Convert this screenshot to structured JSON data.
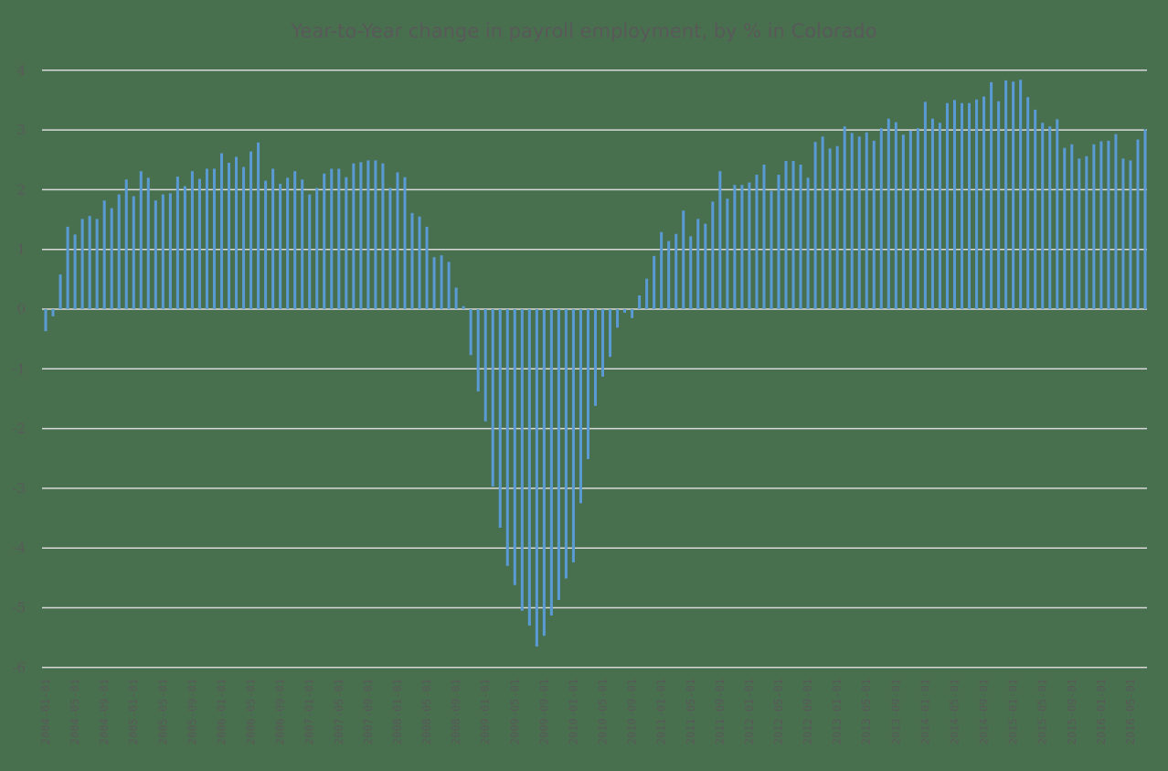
{
  "chart_data": {
    "type": "bar",
    "title": "Year-to-Year change in payroll employment, by % in Colorado",
    "xlabel": "",
    "ylabel": "",
    "ylim": [
      -6,
      4
    ],
    "yticks": [
      4,
      3,
      2,
      1,
      0,
      -1,
      -2,
      -3,
      -4,
      -5,
      -6
    ],
    "grid": true,
    "legend": null,
    "colors": {
      "background": "#48704E",
      "bar": "#5B9BD5",
      "grid": "#D9D9D9",
      "text": "#595959"
    },
    "xtick_labels": [
      "2004-01-01",
      "2004-05-01",
      "2004-09-01",
      "2005-01-01",
      "2005-05-01",
      "2005-09-01",
      "2006-01-01",
      "2006-05-01",
      "2006-09-01",
      "2007-01-01",
      "2007-05-01",
      "2007-09-01",
      "2008-01-01",
      "2008-05-01",
      "2008-09-01",
      "2009-01-01",
      "2009-05-01",
      "2009-09-01",
      "2010-01-01",
      "2010-05-01",
      "2010-09-01",
      "2011-01-01",
      "2011-05-01",
      "2011-09-01",
      "2012-01-01",
      "2012-05-01",
      "2012-09-01",
      "2013-01-01",
      "2013-05-01",
      "2013-09-01",
      "2014-01-01",
      "2014-05-01",
      "2014-09-01",
      "2015-01-01",
      "2015-05-01",
      "2015-09-01",
      "2016-01-01",
      "2016-05-01"
    ],
    "start_month": "2004-01",
    "values": [
      -0.37,
      -0.12,
      0.58,
      1.38,
      1.25,
      1.51,
      1.56,
      1.51,
      1.82,
      1.69,
      1.92,
      2.17,
      1.89,
      2.31,
      2.2,
      1.82,
      1.92,
      1.94,
      2.22,
      2.06,
      2.31,
      2.18,
      2.35,
      2.35,
      2.61,
      2.45,
      2.55,
      2.38,
      2.64,
      2.79,
      2.15,
      2.35,
      2.1,
      2.2,
      2.31,
      2.17,
      1.92,
      2.03,
      2.27,
      2.35,
      2.35,
      2.21,
      2.44,
      2.46,
      2.49,
      2.49,
      2.44,
      2.03,
      2.29,
      2.21,
      1.61,
      1.55,
      1.38,
      0.87,
      0.9,
      0.79,
      0.36,
      0.05,
      -0.77,
      -1.38,
      -1.88,
      -2.97,
      -3.66,
      -4.3,
      -4.62,
      -5.05,
      -5.3,
      -5.65,
      -5.47,
      -5.13,
      -4.87,
      -4.51,
      -4.24,
      -3.25,
      -2.51,
      -1.62,
      -1.13,
      -0.8,
      -0.31,
      -0.06,
      -0.15,
      0.23,
      0.51,
      0.89,
      1.29,
      1.14,
      1.26,
      1.65,
      1.22,
      1.51,
      1.43,
      1.8,
      2.31,
      1.85,
      2.08,
      2.08,
      2.12,
      2.25,
      2.42,
      1.98,
      2.25,
      2.48,
      2.48,
      2.42,
      2.2,
      2.8,
      2.89,
      2.69,
      2.73,
      3.06,
      2.95,
      2.89,
      2.96,
      2.82,
      3.03,
      3.19,
      3.13,
      2.92,
      2.99,
      3.03,
      3.47,
      3.19,
      3.12,
      3.45,
      3.5,
      3.45,
      3.45,
      3.51,
      3.56,
      3.8,
      3.48,
      3.83,
      3.81,
      3.84,
      3.55,
      3.34,
      3.12,
      3.06,
      3.18,
      2.7,
      2.76,
      2.52,
      2.56,
      2.76,
      2.81,
      2.82,
      2.93,
      2.52,
      2.49,
      2.84,
      3.01
    ]
  }
}
